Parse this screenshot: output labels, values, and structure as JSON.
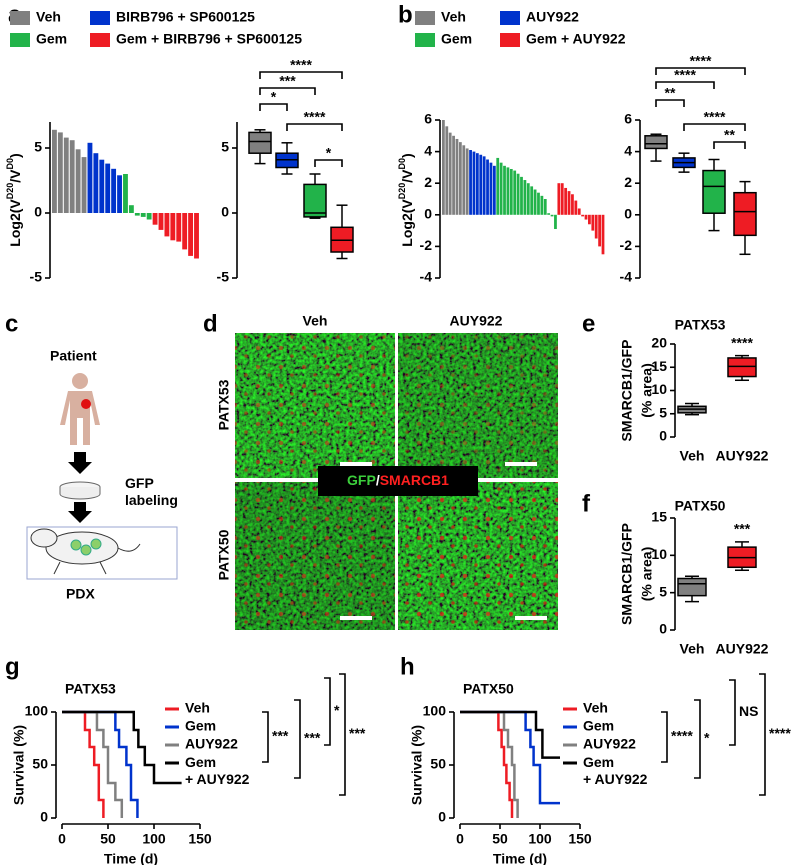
{
  "panel_labels": [
    "a",
    "b",
    "c",
    "d",
    "e",
    "f",
    "g",
    "h"
  ],
  "diagram": {
    "patient": "Patient",
    "labeling": "GFP\nlabeling",
    "model": "PDX"
  },
  "micrographs": {
    "columns": [
      "Veh",
      "AUY922"
    ],
    "rows": [
      "PATX53",
      "PATX50"
    ],
    "stain_green": "GFP",
    "separator": "/",
    "stain_red": "SMARCB1"
  },
  "chart_data": [
    {
      "type": "bar",
      "y_label": [
        "Log2(V",
        "D20",
        "/V",
        "D0",
        ")"
      ],
      "ylim": [
        -5,
        7
      ],
      "yticks": [
        -5,
        0,
        5
      ],
      "series": [
        {
          "name": "Veh",
          "color": "#808080",
          "values": [
            6.4,
            6.2,
            5.8,
            5.6,
            4.9,
            4.3
          ]
        },
        {
          "name": "BIRB796 + SP600125",
          "color": "#0033cc",
          "values": [
            5.4,
            4.6,
            4.1,
            3.8,
            3.4,
            2.9
          ]
        },
        {
          "name": "Gem",
          "color": "#22b34a",
          "values": [
            3.0,
            0.6,
            -0.2,
            -0.3,
            -0.5
          ]
        },
        {
          "name": "Gem + BIRB796 + SP600125",
          "color": "#ee1c24",
          "values": [
            -0.9,
            -1.3,
            -1.8,
            -2.1,
            -2.2,
            -2.8,
            -3.3,
            -3.5
          ]
        }
      ]
    },
    {
      "type": "box",
      "ylim": [
        -5,
        7
      ],
      "yticks": [
        -5,
        0,
        5
      ],
      "boxes": [
        {
          "color": "#808080",
          "min": 3.8,
          "q1": 4.6,
          "median": 5.5,
          "q3": 6.2,
          "max": 6.4
        },
        {
          "color": "#0033cc",
          "min": 3.0,
          "q1": 3.5,
          "median": 4.1,
          "q3": 4.6,
          "max": 5.4
        },
        {
          "color": "#22b34a",
          "min": -0.4,
          "q1": -0.3,
          "median": 0.0,
          "q3": 2.2,
          "max": 3.0
        },
        {
          "color": "#ee1c24",
          "min": -3.5,
          "q1": -3.0,
          "median": -2.1,
          "q3": -1.1,
          "max": 0.6
        }
      ],
      "annotations": [
        "****",
        "***",
        "*",
        "****",
        "*"
      ]
    },
    {
      "type": "bar",
      "y_label": [
        "Log2(V",
        "D20",
        "/V",
        "D0",
        ")"
      ],
      "ylim": [
        -4,
        6
      ],
      "yticks": [
        -4,
        -2,
        0,
        2,
        4,
        6
      ],
      "series": [
        {
          "name": "Veh",
          "color": "#808080",
          "values": [
            6.0,
            5.6,
            5.2,
            5.0,
            4.8,
            4.6,
            4.4,
            4.2
          ]
        },
        {
          "name": "AUY922",
          "color": "#0033cc",
          "values": [
            4.1,
            4.0,
            3.9,
            3.8,
            3.7,
            3.5,
            3.3,
            3.1
          ]
        },
        {
          "name": "Gem",
          "color": "#22b34a",
          "values": [
            3.6,
            3.3,
            3.1,
            3.0,
            2.9,
            2.8,
            2.6,
            2.4,
            2.2,
            2.0,
            1.8,
            1.6,
            1.4,
            1.2,
            1.0,
            0.1,
            -0.1,
            -0.9
          ]
        },
        {
          "name": "Gem + AUY922",
          "color": "#ee1c24",
          "values": [
            2.0,
            2.0,
            1.7,
            1.5,
            1.3,
            0.9,
            0.4,
            -0.1,
            -0.3,
            -0.6,
            -1.0,
            -1.5,
            -2.0,
            -2.5
          ]
        }
      ]
    },
    {
      "type": "box",
      "ylim": [
        -4,
        6
      ],
      "yticks": [
        -4,
        -2,
        0,
        2,
        4,
        6
      ],
      "boxes": [
        {
          "color": "#808080",
          "min": 3.4,
          "q1": 4.2,
          "median": 4.5,
          "q3": 5.0,
          "max": 5.1
        },
        {
          "color": "#0033cc",
          "min": 2.7,
          "q1": 3.0,
          "median": 3.3,
          "q3": 3.6,
          "max": 3.9
        },
        {
          "color": "#22b34a",
          "min": -1.0,
          "q1": 0.1,
          "median": 1.8,
          "q3": 2.8,
          "max": 3.5
        },
        {
          "color": "#ee1c24",
          "min": -2.5,
          "q1": -1.3,
          "median": 0.2,
          "q3": 1.4,
          "max": 2.1
        }
      ],
      "annotations": [
        "****",
        "****",
        "**",
        "****",
        "**"
      ]
    },
    {
      "type": "box",
      "title": "PATX53",
      "y_label": [
        "SMARCB1/GFP",
        "(% area)"
      ],
      "ylim": [
        0,
        20
      ],
      "yticks": [
        0,
        5,
        10,
        15,
        20
      ],
      "categories": [
        "Veh",
        "AUY922"
      ],
      "boxes": [
        {
          "color": "#808080",
          "min": 4.8,
          "q1": 5.2,
          "median": 6.0,
          "q3": 6.6,
          "max": 7.2
        },
        {
          "color": "#ee1c24",
          "min": 12.2,
          "q1": 13.0,
          "median": 15.2,
          "q3": 17.0,
          "max": 17.5
        }
      ],
      "annotations": [
        "****"
      ]
    },
    {
      "type": "box",
      "title": "PATX50",
      "y_label": [
        "SMARCB1/GFP",
        "(% area)"
      ],
      "ylim": [
        0,
        15
      ],
      "yticks": [
        0,
        5,
        10,
        15
      ],
      "categories": [
        "Veh",
        "AUY922"
      ],
      "boxes": [
        {
          "color": "#808080",
          "min": 3.8,
          "q1": 4.6,
          "median": 6.2,
          "q3": 6.9,
          "max": 7.2
        },
        {
          "color": "#ee1c24",
          "min": 8.0,
          "q1": 8.4,
          "median": 9.7,
          "q3": 11.1,
          "max": 11.8
        }
      ],
      "annotations": [
        "***"
      ]
    },
    {
      "type": "step",
      "title": "PATX53",
      "x_label": "Time (d)",
      "y_label": "Survival (%)",
      "xlim": [
        0,
        150
      ],
      "xticks": [
        0,
        50,
        100,
        150
      ],
      "ylim": [
        0,
        100
      ],
      "yticks": [
        0,
        50,
        100
      ],
      "series": [
        {
          "name": "Veh",
          "color": "#ee1c24",
          "x": [
            0,
            25,
            30,
            35,
            40,
            45
          ],
          "values": [
            100,
            83,
            67,
            50,
            17,
            0
          ]
        },
        {
          "name": "Gem",
          "color": "#0033cc",
          "x": [
            0,
            58,
            62,
            70,
            75,
            82
          ],
          "values": [
            100,
            83,
            67,
            50,
            17,
            0
          ]
        },
        {
          "name": "AUY922",
          "color": "#808080",
          "x": [
            0,
            38,
            45,
            50,
            58,
            65
          ],
          "values": [
            100,
            83,
            67,
            33,
            17,
            0
          ]
        },
        {
          "name": "Gem\n+ AUY922",
          "color": "#000000",
          "x": [
            0,
            78,
            83,
            90,
            100,
            130
          ],
          "values": [
            100,
            83,
            67,
            50,
            33,
            33
          ]
        }
      ],
      "annotations": [
        "***",
        "***",
        "*",
        "***"
      ]
    },
    {
      "type": "step",
      "title": "PATX50",
      "x_label": "Time (d)",
      "y_label": "Survival (%)",
      "xlim": [
        0,
        150
      ],
      "xticks": [
        0,
        50,
        100,
        150
      ],
      "ylim": [
        0,
        100
      ],
      "yticks": [
        0,
        50,
        100
      ],
      "series": [
        {
          "name": "Veh",
          "color": "#ee1c24",
          "x": [
            0,
            48,
            52,
            55,
            58,
            62,
            65
          ],
          "values": [
            100,
            83,
            67,
            50,
            33,
            17,
            0
          ]
        },
        {
          "name": "Gem",
          "color": "#0033cc",
          "x": [
            0,
            82,
            88,
            92,
            100,
            125
          ],
          "values": [
            100,
            83,
            67,
            50,
            14,
            14
          ]
        },
        {
          "name": "AUY922",
          "color": "#808080",
          "x": [
            0,
            55,
            60,
            65,
            68,
            72
          ],
          "values": [
            100,
            83,
            67,
            50,
            17,
            0
          ]
        },
        {
          "name": "Gem\n+ AUY922",
          "color": "#000000",
          "x": [
            0,
            95,
            103,
            125
          ],
          "values": [
            100,
            83,
            57,
            57
          ]
        }
      ],
      "annotations": [
        "****",
        "*",
        "NS",
        "****"
      ]
    }
  ]
}
